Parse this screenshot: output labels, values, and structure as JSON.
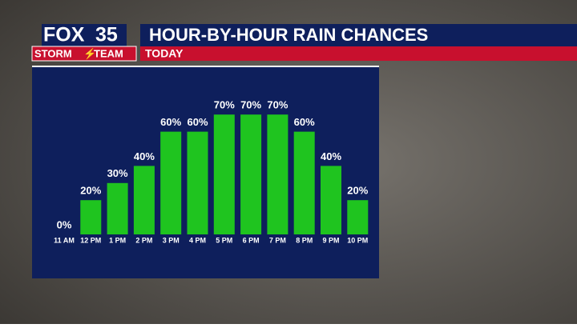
{
  "header": {
    "logo_top": "FOX",
    "logo_number": "35",
    "logo_bottom_left": "STORM",
    "logo_bottom_right": "TEAM"
  },
  "chart_data": {
    "type": "bar",
    "title": "HOUR-BY-HOUR RAIN CHANCES",
    "subtitle": "TODAY",
    "categories": [
      "11 AM",
      "12 PM",
      "1 PM",
      "2 PM",
      "3 PM",
      "4 PM",
      "5 PM",
      "6 PM",
      "7 PM",
      "8 PM",
      "9 PM",
      "10 PM"
    ],
    "values": [
      0,
      20,
      30,
      40,
      60,
      60,
      70,
      70,
      70,
      60,
      40,
      20
    ],
    "value_labels": [
      "0%",
      "20%",
      "30%",
      "40%",
      "60%",
      "60%",
      "70%",
      "70%",
      "70%",
      "60%",
      "40%",
      "20%"
    ],
    "color": "#1fc41f"
  }
}
